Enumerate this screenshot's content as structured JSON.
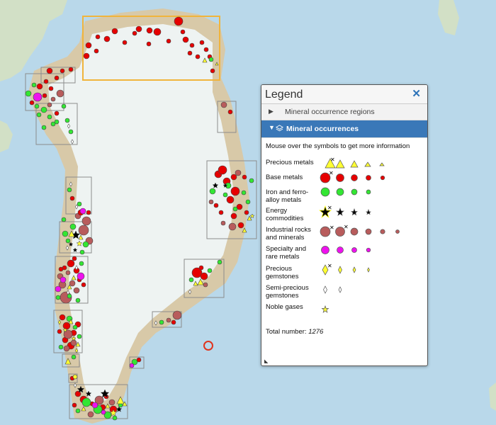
{
  "legend": {
    "title": "Legend",
    "close_icon": "close-x-icon",
    "sections": [
      {
        "label": "Mineral occurrence regions",
        "expanded": false
      },
      {
        "label": "Mineral occurrences",
        "expanded": true
      }
    ],
    "hint": "Mouse over the symbols to get more information",
    "categories": [
      {
        "label": "Precious metals",
        "color": "#ffff33",
        "shape": "triangle"
      },
      {
        "label": "Base metals",
        "color": "#e60000",
        "shape": "circle"
      },
      {
        "label": "Iron and ferro-alloy metals",
        "color": "#33e633",
        "shape": "circle"
      },
      {
        "label": "Energy commodities",
        "color": "#000000",
        "shape": "star"
      },
      {
        "label": "Industrial rocks and minerals",
        "color": "#b85c5c",
        "shape": "circle"
      },
      {
        "label": "Specialty and rare metals",
        "color": "#ee11ee",
        "shape": "circle"
      },
      {
        "label": "Precious gemstones",
        "color": "#ffff33",
        "shape": "diamond"
      },
      {
        "label": "Semi-precious gemstones",
        "color": "#ffffff",
        "shape": "diamond"
      },
      {
        "label": "Noble gases",
        "color": "#ffff33",
        "shape": "star"
      }
    ],
    "total_label": "Total number:",
    "total_value": "1276"
  },
  "map": {
    "ocean_color": "#b9d8ea",
    "ice_color": "#eef3f2",
    "land_color": "#d8c9a8",
    "selected_region_color": "#f0b43c"
  }
}
